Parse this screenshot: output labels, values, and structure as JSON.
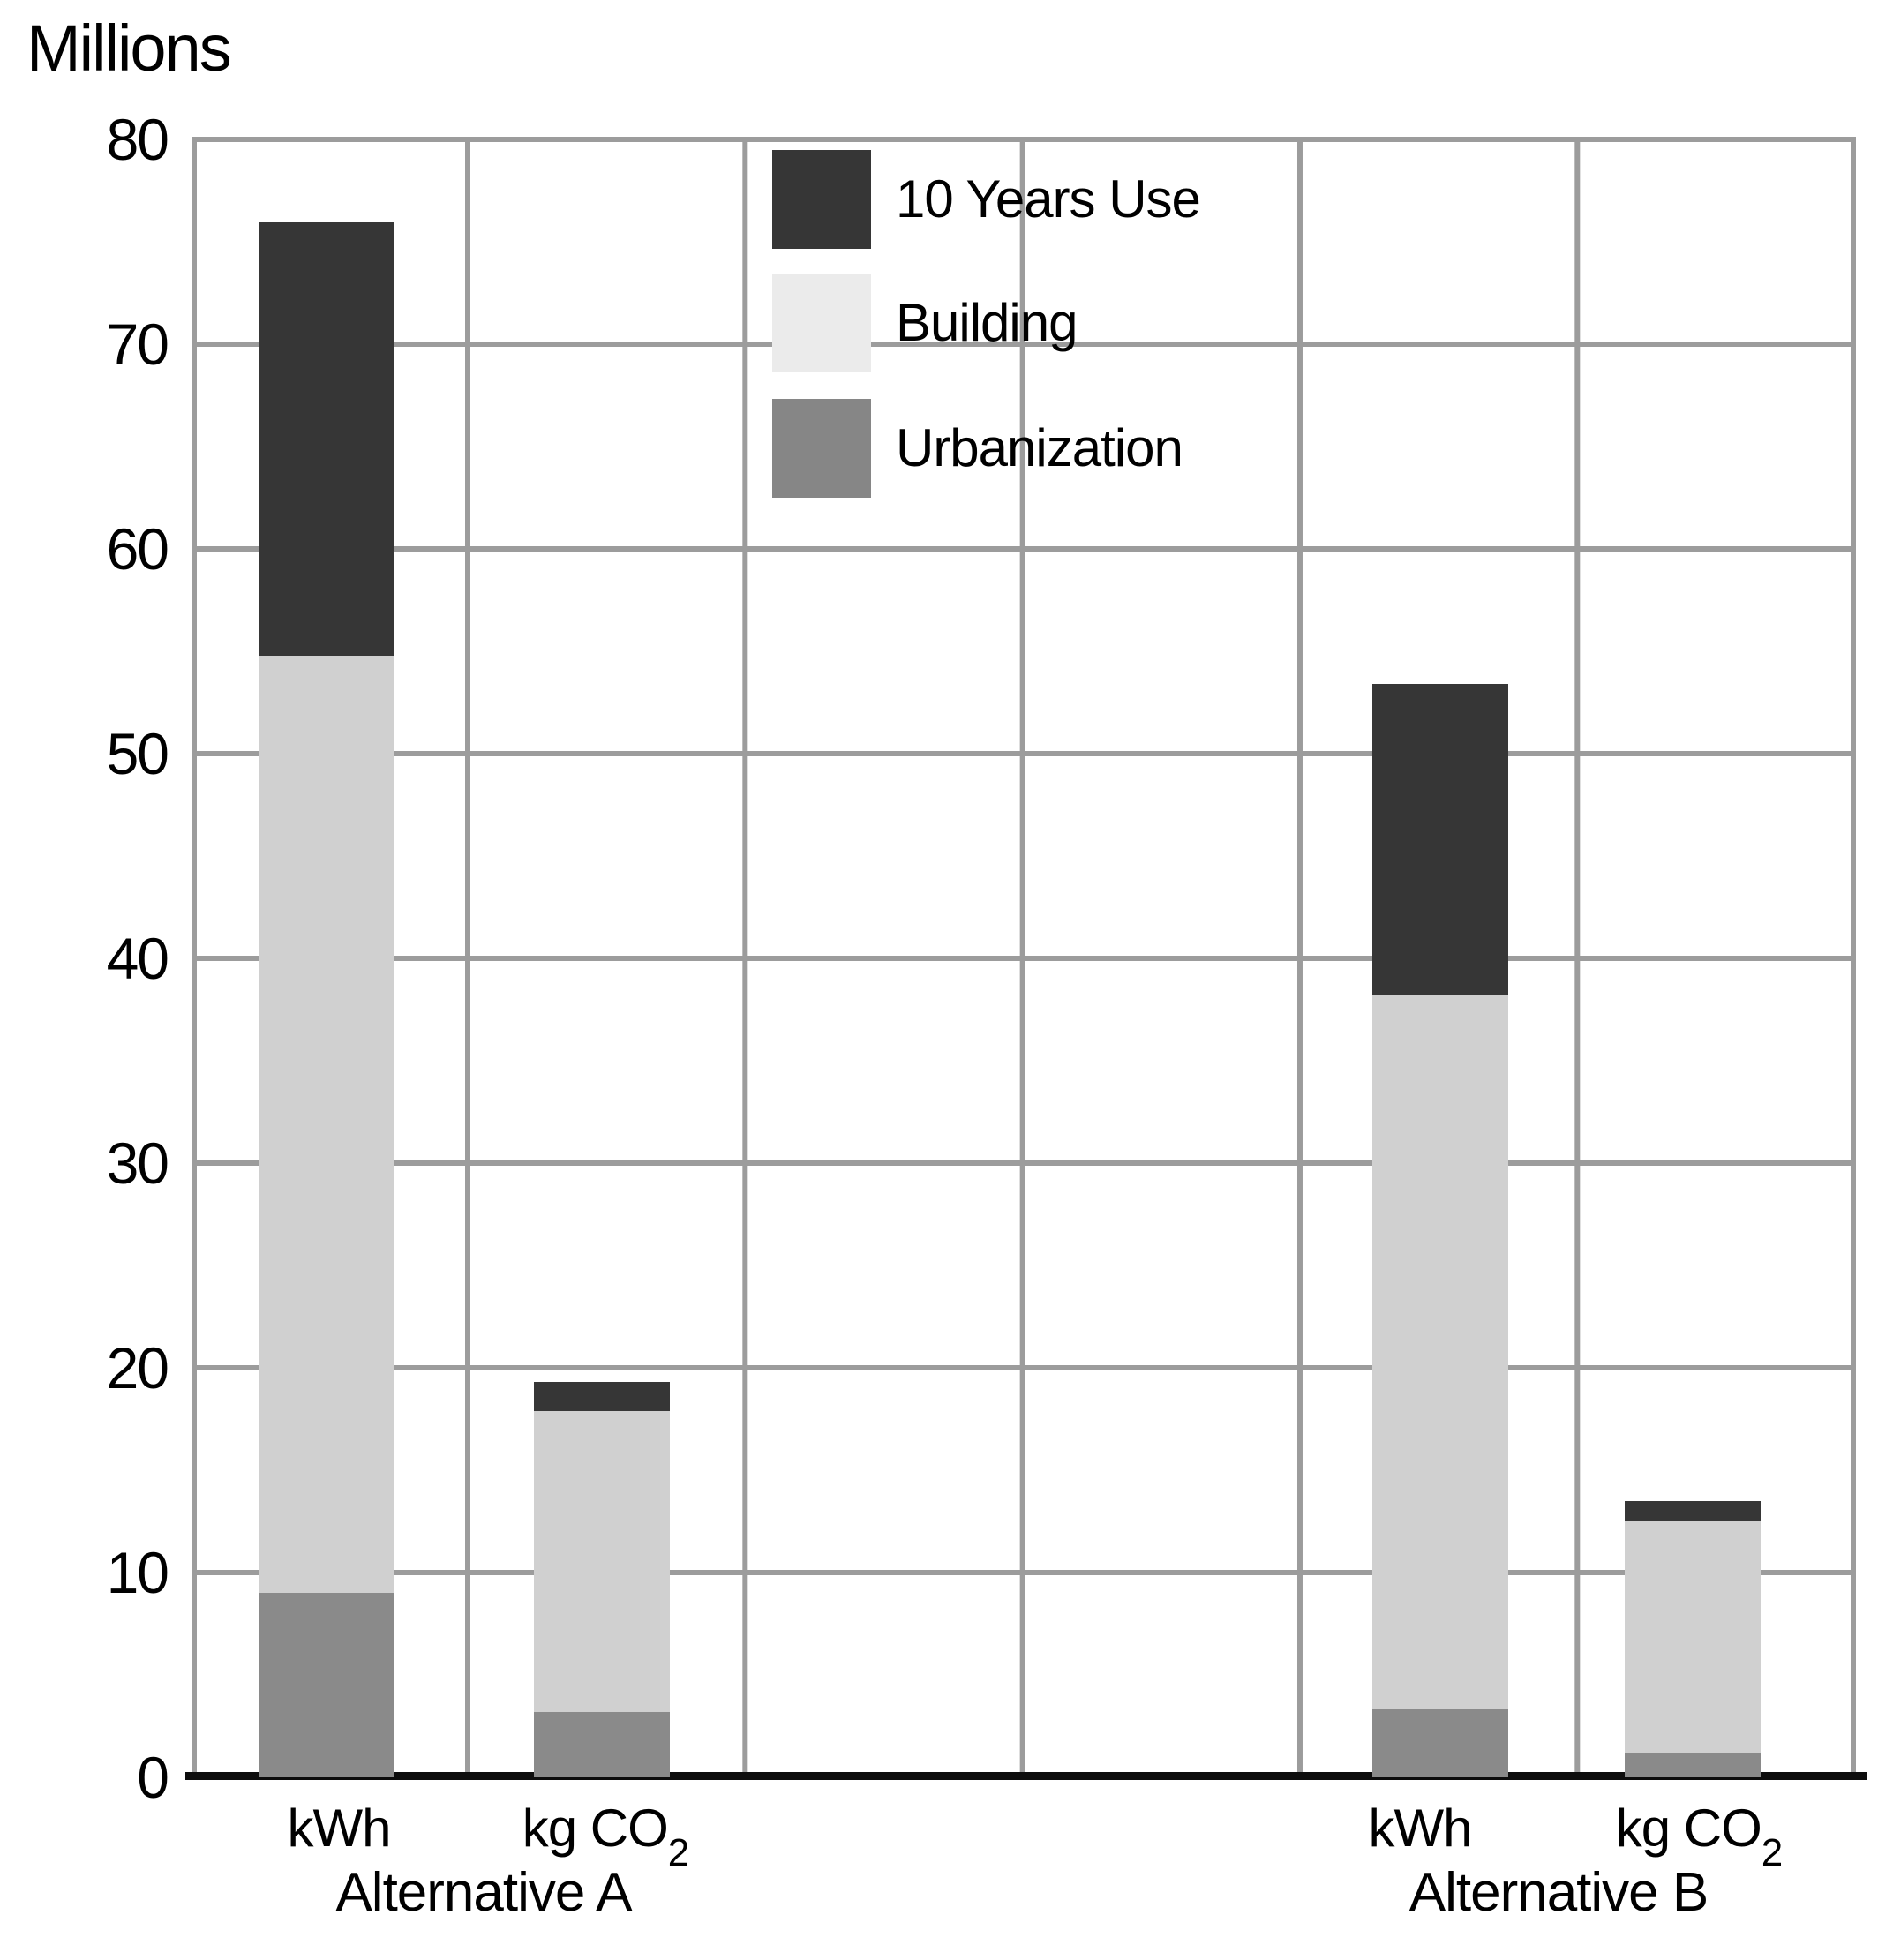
{
  "title": "Millions",
  "legend": {
    "items": [
      {
        "label": "10 Years Use",
        "swatch_color": "#363636"
      },
      {
        "label": "Building",
        "swatch_color": "#ebebeb"
      },
      {
        "label": "Urbanization",
        "swatch_color": "#868686"
      }
    ]
  },
  "colors": {
    "segment_10_years_use": "#363636",
    "segment_building": "#d0d0d0",
    "segment_urbanization": "#8a8a8a",
    "gridline": "#9c9c9c",
    "axis": "#0d0d0d"
  },
  "chart_data": {
    "type": "bar",
    "stacked": true,
    "title": "Millions",
    "ylabel": "Millions",
    "ylim": [
      0,
      80
    ],
    "ytick_step": 10,
    "yticks": [
      80,
      70,
      60,
      50,
      40,
      30,
      20,
      10,
      0
    ],
    "grid": true,
    "legend_position": "inside-top-center",
    "segment_order_bottom_to_top": [
      "Urbanization",
      "Building",
      "10 Years Use"
    ],
    "categories": [
      {
        "group": "Alternative A",
        "label": "kWh",
        "label_sub": "",
        "total": 76.0
      },
      {
        "group": "Alternative A",
        "label": "kg CO",
        "label_sub": "2",
        "total": 19.3
      },
      {
        "group": "Alternative B",
        "label": "kWh",
        "label_sub": "",
        "total": 53.4
      },
      {
        "group": "Alternative B",
        "label": "kg CO",
        "label_sub": "2",
        "total": 13.5
      }
    ],
    "group_labels": [
      "Alternative A",
      "Alternative B"
    ],
    "series": [
      {
        "name": "Urbanization",
        "color": "#8a8a8a",
        "values": [
          9.0,
          3.2,
          3.3,
          1.2
        ]
      },
      {
        "name": "Building",
        "color": "#d0d0d0",
        "values": [
          45.8,
          14.7,
          34.9,
          11.3
        ]
      },
      {
        "name": "10 Years Use",
        "color": "#363636",
        "values": [
          21.2,
          1.4,
          15.2,
          1.0
        ]
      }
    ]
  }
}
